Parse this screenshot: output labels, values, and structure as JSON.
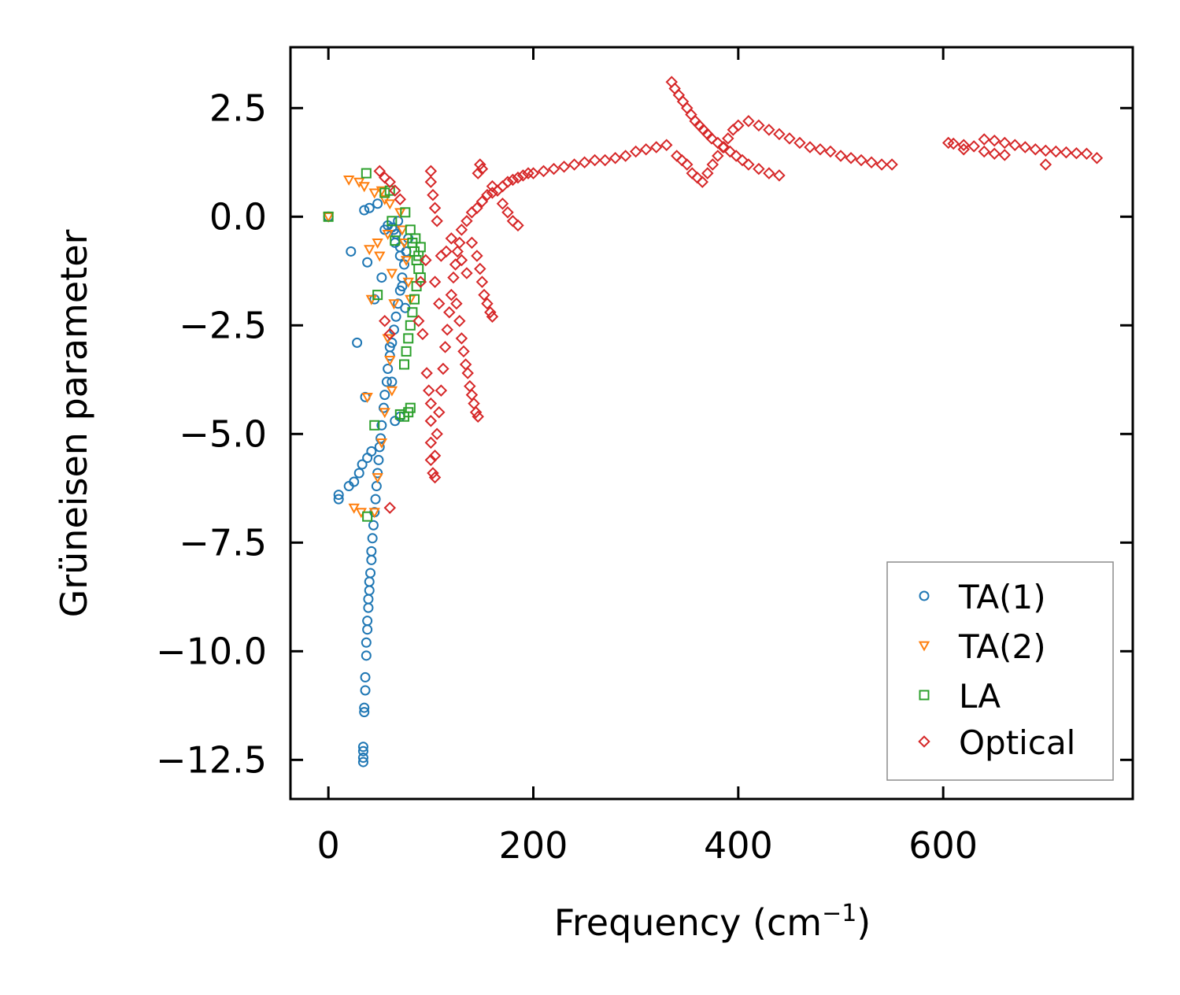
{
  "chart_data": {
    "type": "scatter",
    "title": "",
    "xlabel": "Frequency (cm",
    "xlabel_sup": "−1",
    "xlabel_end": ")",
    "ylabel": "Grüneisen parameter",
    "xlim": [
      -37,
      785
    ],
    "ylim": [
      -13.4,
      3.9
    ],
    "xticks": [
      0,
      200,
      400,
      600
    ],
    "xtick_labels": [
      "0",
      "200",
      "400",
      "600"
    ],
    "yticks": [
      2.5,
      0.0,
      -2.5,
      -5.0,
      -7.5,
      -10.0,
      -12.5
    ],
    "ytick_labels": [
      "2.5",
      "0.0",
      "−2.5",
      "−5.0",
      "−7.5",
      "−10.0",
      "−12.5"
    ],
    "legend_position": "bottom-right",
    "grid": false,
    "series": [
      {
        "name": "TA(1)",
        "marker": "circle",
        "color": "#1f77b4",
        "points": [
          [
            0,
            0
          ],
          [
            10,
            -6.4
          ],
          [
            10,
            -6.5
          ],
          [
            20,
            -6.2
          ],
          [
            22,
            -0.8
          ],
          [
            25,
            -6.1
          ],
          [
            28,
            -2.9
          ],
          [
            30,
            -5.9
          ],
          [
            33,
            -5.7
          ],
          [
            35,
            0.15
          ],
          [
            36,
            -4.15
          ],
          [
            38,
            -5.55
          ],
          [
            38,
            -1.05
          ],
          [
            40,
            0.2
          ],
          [
            42,
            -5.4
          ],
          [
            45,
            -1.9
          ],
          [
            48,
            0.3
          ],
          [
            52,
            -1.4
          ],
          [
            55,
            -0.3
          ],
          [
            58,
            -0.2
          ],
          [
            62,
            -0.25
          ],
          [
            65,
            -0.6
          ],
          [
            68,
            -0.1
          ],
          [
            70,
            -0.9
          ],
          [
            72,
            -1.6
          ],
          [
            75,
            -2.1
          ],
          [
            60,
            -3.0
          ],
          [
            62,
            -3.8
          ],
          [
            65,
            -4.7
          ],
          [
            70,
            -4.6
          ],
          [
            34,
            -12.2
          ],
          [
            34,
            -12.3
          ],
          [
            34,
            -12.45
          ],
          [
            34,
            -12.55
          ],
          [
            35,
            -11.3
          ],
          [
            35,
            -11.4
          ],
          [
            36,
            -10.9
          ],
          [
            36,
            -10.6
          ],
          [
            37,
            -10.1
          ],
          [
            37,
            -9.8
          ],
          [
            38,
            -9.5
          ],
          [
            38,
            -9.3
          ],
          [
            39,
            -9.0
          ],
          [
            39,
            -8.8
          ],
          [
            40,
            -8.6
          ],
          [
            40,
            -8.4
          ],
          [
            41,
            -8.2
          ],
          [
            42,
            -7.9
          ],
          [
            42,
            -7.7
          ],
          [
            43,
            -7.4
          ],
          [
            44,
            -7.1
          ],
          [
            45,
            -6.8
          ],
          [
            46,
            -6.5
          ],
          [
            47,
            -6.2
          ],
          [
            48,
            -5.9
          ],
          [
            49,
            -5.6
          ],
          [
            50,
            -5.3
          ],
          [
            51,
            -5.1
          ],
          [
            52,
            -4.8
          ],
          [
            54,
            -4.4
          ],
          [
            55,
            -4.1
          ],
          [
            57,
            -3.8
          ],
          [
            58,
            -3.5
          ],
          [
            60,
            -3.2
          ],
          [
            62,
            -2.9
          ],
          [
            64,
            -2.6
          ],
          [
            66,
            -2.3
          ],
          [
            68,
            -2.0
          ],
          [
            70,
            -1.7
          ],
          [
            72,
            -1.4
          ],
          [
            74,
            -1.1
          ],
          [
            76,
            -0.8
          ],
          [
            78,
            -0.5
          ],
          [
            64,
            -0.3
          ],
          [
            66,
            -0.4
          ],
          [
            70,
            -0.7
          ]
        ]
      },
      {
        "name": "TA(2)",
        "marker": "triangle-down",
        "color": "#ff7f0e",
        "points": [
          [
            0,
            0
          ],
          [
            20,
            0.85
          ],
          [
            25,
            -6.7
          ],
          [
            30,
            0.8
          ],
          [
            32,
            -6.8
          ],
          [
            35,
            0.7
          ],
          [
            38,
            -4.15
          ],
          [
            40,
            -0.75
          ],
          [
            42,
            -1.9
          ],
          [
            45,
            0.55
          ],
          [
            48,
            -0.6
          ],
          [
            50,
            -0.9
          ],
          [
            52,
            0.6
          ],
          [
            55,
            0.4
          ],
          [
            58,
            -0.4
          ],
          [
            60,
            0.3
          ],
          [
            62,
            -1.3
          ],
          [
            64,
            -2.0
          ],
          [
            58,
            -2.8
          ],
          [
            60,
            -3.3
          ],
          [
            62,
            -4.0
          ],
          [
            55,
            -4.5
          ],
          [
            52,
            -5.2
          ],
          [
            48,
            -6.0
          ],
          [
            45,
            -6.8
          ],
          [
            70,
            0.1
          ],
          [
            72,
            -0.3
          ],
          [
            74,
            -0.6
          ],
          [
            76,
            -1.0
          ],
          [
            78,
            -1.5
          ],
          [
            80,
            -1.9
          ]
        ]
      },
      {
        "name": "LA",
        "marker": "square",
        "color": "#2ca02c",
        "points": [
          [
            0,
            0
          ],
          [
            37,
            1.0
          ],
          [
            38,
            -6.9
          ],
          [
            45,
            -4.8
          ],
          [
            48,
            -1.8
          ],
          [
            55,
            0.55
          ],
          [
            60,
            0.6
          ],
          [
            62,
            -0.1
          ],
          [
            65,
            -0.55
          ],
          [
            70,
            -4.55
          ],
          [
            74,
            -4.6
          ],
          [
            78,
            -4.5
          ],
          [
            80,
            -4.4
          ],
          [
            82,
            -0.6
          ],
          [
            84,
            -0.8
          ],
          [
            86,
            -1.0
          ],
          [
            88,
            -1.2
          ],
          [
            90,
            -1.4
          ],
          [
            88,
            -0.9
          ],
          [
            86,
            -1.6
          ],
          [
            84,
            -1.9
          ],
          [
            82,
            -2.2
          ],
          [
            80,
            -2.5
          ],
          [
            78,
            -2.8
          ],
          [
            76,
            -3.1
          ],
          [
            74,
            -3.4
          ],
          [
            90,
            -0.7
          ],
          [
            85,
            -0.5
          ],
          [
            80,
            -0.3
          ],
          [
            75,
            0.1
          ]
        ]
      },
      {
        "name": "Optical",
        "marker": "diamond",
        "color": "#d62728",
        "points": [
          [
            50,
            1.05
          ],
          [
            55,
            0.9
          ],
          [
            60,
            0.8
          ],
          [
            65,
            0.6
          ],
          [
            70,
            0.4
          ],
          [
            60,
            -6.7
          ],
          [
            55,
            -2.4
          ],
          [
            60,
            -2.7
          ],
          [
            100,
            1.05
          ],
          [
            100,
            0.8
          ],
          [
            102,
            0.5
          ],
          [
            104,
            0.2
          ],
          [
            106,
            -0.1
          ],
          [
            100,
            -4.3
          ],
          [
            100,
            -4.7
          ],
          [
            100,
            -5.2
          ],
          [
            100,
            -5.6
          ],
          [
            102,
            -5.9
          ],
          [
            104,
            -6.0
          ],
          [
            104,
            -5.5
          ],
          [
            106,
            -5.0
          ],
          [
            108,
            -4.5
          ],
          [
            110,
            -4.0
          ],
          [
            112,
            -3.5
          ],
          [
            114,
            -3.0
          ],
          [
            116,
            -2.6
          ],
          [
            118,
            -2.2
          ],
          [
            120,
            -1.8
          ],
          [
            122,
            -1.4
          ],
          [
            124,
            -1.1
          ],
          [
            126,
            -0.8
          ],
          [
            128,
            -0.6
          ],
          [
            110,
            -0.9
          ],
          [
            95,
            -1.0
          ],
          [
            90,
            -1.5
          ],
          [
            88,
            -2.4
          ],
          [
            92,
            -2.7
          ],
          [
            96,
            -3.6
          ],
          [
            98,
            -4.0
          ],
          [
            104,
            -1.5
          ],
          [
            108,
            -2.0
          ],
          [
            115,
            -0.8
          ],
          [
            120,
            -0.5
          ],
          [
            130,
            -0.3
          ],
          [
            135,
            -0.1
          ],
          [
            140,
            0.1
          ],
          [
            145,
            0.2
          ],
          [
            150,
            0.35
          ],
          [
            155,
            0.5
          ],
          [
            160,
            0.55
          ],
          [
            165,
            0.6
          ],
          [
            170,
            0.7
          ],
          [
            175,
            0.8
          ],
          [
            180,
            0.85
          ],
          [
            185,
            0.9
          ],
          [
            190,
            0.95
          ],
          [
            195,
            1.0
          ],
          [
            200,
            1.0
          ],
          [
            210,
            1.05
          ],
          [
            220,
            1.1
          ],
          [
            230,
            1.15
          ],
          [
            240,
            1.2
          ],
          [
            250,
            1.25
          ],
          [
            260,
            1.3
          ],
          [
            270,
            1.3
          ],
          [
            280,
            1.35
          ],
          [
            290,
            1.4
          ],
          [
            300,
            1.5
          ],
          [
            310,
            1.55
          ],
          [
            320,
            1.6
          ],
          [
            330,
            1.65
          ],
          [
            335,
            3.1
          ],
          [
            338,
            2.95
          ],
          [
            342,
            2.8
          ],
          [
            346,
            2.65
          ],
          [
            350,
            2.5
          ],
          [
            354,
            2.35
          ],
          [
            358,
            2.2
          ],
          [
            362,
            2.1
          ],
          [
            366,
            2.0
          ],
          [
            370,
            1.9
          ],
          [
            374,
            1.8
          ],
          [
            380,
            1.7
          ],
          [
            386,
            1.6
          ],
          [
            392,
            1.5
          ],
          [
            398,
            1.4
          ],
          [
            404,
            1.3
          ],
          [
            410,
            1.2
          ],
          [
            420,
            1.1
          ],
          [
            430,
            1.0
          ],
          [
            440,
            0.95
          ],
          [
            340,
            1.4
          ],
          [
            345,
            1.3
          ],
          [
            350,
            1.2
          ],
          [
            355,
            1.0
          ],
          [
            360,
            0.9
          ],
          [
            365,
            0.8
          ],
          [
            370,
            1.0
          ],
          [
            375,
            1.2
          ],
          [
            380,
            1.4
          ],
          [
            385,
            1.6
          ],
          [
            390,
            1.8
          ],
          [
            395,
            2.0
          ],
          [
            400,
            2.1
          ],
          [
            410,
            2.2
          ],
          [
            420,
            2.1
          ],
          [
            430,
            2.0
          ],
          [
            440,
            1.9
          ],
          [
            450,
            1.8
          ],
          [
            460,
            1.7
          ],
          [
            470,
            1.6
          ],
          [
            480,
            1.55
          ],
          [
            490,
            1.5
          ],
          [
            500,
            1.4
          ],
          [
            510,
            1.35
          ],
          [
            520,
            1.3
          ],
          [
            530,
            1.25
          ],
          [
            540,
            1.2
          ],
          [
            550,
            1.2
          ],
          [
            140,
            -0.6
          ],
          [
            145,
            -0.9
          ],
          [
            148,
            -1.2
          ],
          [
            150,
            -1.5
          ],
          [
            152,
            -1.8
          ],
          [
            155,
            -2.0
          ],
          [
            158,
            -2.2
          ],
          [
            160,
            -2.3
          ],
          [
            130,
            -1.0
          ],
          [
            135,
            -1.3
          ],
          [
            125,
            -2.0
          ],
          [
            128,
            -2.4
          ],
          [
            130,
            -2.8
          ],
          [
            132,
            -3.1
          ],
          [
            134,
            -3.4
          ],
          [
            136,
            -3.6
          ],
          [
            138,
            -3.9
          ],
          [
            140,
            -4.1
          ],
          [
            142,
            -4.3
          ],
          [
            144,
            -4.5
          ],
          [
            146,
            -4.6
          ],
          [
            150,
            1.1
          ],
          [
            148,
            1.2
          ],
          [
            146,
            1.0
          ],
          [
            160,
            0.7
          ],
          [
            170,
            0.3
          ],
          [
            175,
            0.1
          ],
          [
            180,
            -0.1
          ],
          [
            185,
            -0.2
          ],
          [
            605,
            1.7
          ],
          [
            610,
            1.68
          ],
          [
            620,
            1.65
          ],
          [
            630,
            1.62
          ],
          [
            640,
            1.78
          ],
          [
            650,
            1.75
          ],
          [
            660,
            1.7
          ],
          [
            670,
            1.65
          ],
          [
            680,
            1.6
          ],
          [
            690,
            1.55
          ],
          [
            700,
            1.52
          ],
          [
            710,
            1.5
          ],
          [
            720,
            1.48
          ],
          [
            730,
            1.46
          ],
          [
            740,
            1.45
          ],
          [
            750,
            1.35
          ],
          [
            640,
            1.5
          ],
          [
            650,
            1.45
          ],
          [
            660,
            1.42
          ],
          [
            700,
            1.2
          ],
          [
            620,
            1.55
          ]
        ]
      }
    ]
  }
}
